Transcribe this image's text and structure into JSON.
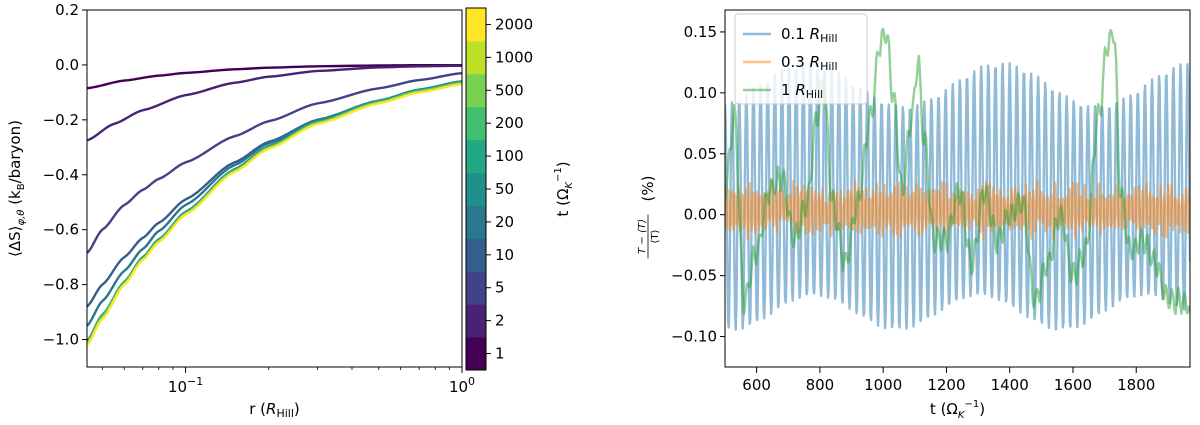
{
  "chart_data": [
    {
      "type": "line",
      "xlabel": "r (R_Hill)",
      "xlabel_parts": {
        "main": "r (",
        "sym": "R",
        "sub": "Hill",
        "close": ")"
      },
      "ylabel": "⟨ΔS⟩φ,θ (kB/baryon)",
      "ylabel_parts": {
        "main": "⟨ΔS⟩",
        "sub": "φ,θ",
        "mid": " (k",
        "sub2": "B",
        "tail": "/baryon)"
      },
      "x_scale": "log",
      "xlim": [
        0.044,
        1.0
      ],
      "ylim": [
        -1.1,
        0.2
      ],
      "x_ticks": [
        {
          "value": 0.1,
          "base": "10",
          "exp": "−1"
        },
        {
          "value": 1.0,
          "base": "10",
          "exp": "0"
        }
      ],
      "y_ticks": [
        "0.2",
        "0.0",
        "−0.2",
        "−0.4",
        "−0.6",
        "−0.8",
        "−1.0"
      ],
      "y_tick_values": [
        0.2,
        0.0,
        -0.2,
        -0.4,
        -0.6,
        -0.8,
        -1.0
      ],
      "colorbar": {
        "label": "t (Ω_K^-1)",
        "label_parts": {
          "main": "t (Ω",
          "sub": "K",
          "sup": "−1",
          "close": ")"
        },
        "ticks": [
          "1",
          "2",
          "5",
          "10",
          "20",
          "50",
          "100",
          "200",
          "500",
          "1000",
          "2000"
        ],
        "colors": [
          "#440154",
          "#482374",
          "#404387",
          "#345f8d",
          "#29788e",
          "#20908d",
          "#22a884",
          "#43bf71",
          "#7ad151",
          "#bcdf27",
          "#fde725"
        ]
      },
      "series": [
        {
          "t": 1,
          "color": "#440154",
          "x": [
            0.044,
            0.06,
            0.08,
            0.1,
            0.15,
            0.2,
            0.3,
            0.5,
            0.7,
            1.0
          ],
          "y": [
            -0.085,
            -0.057,
            -0.039,
            -0.029,
            -0.016,
            -0.01,
            -0.005,
            -0.002,
            -0.001,
            -0.001
          ]
        },
        {
          "t": 2,
          "color": "#482374",
          "x": [
            0.044,
            0.055,
            0.07,
            0.1,
            0.15,
            0.2,
            0.3,
            0.5,
            0.7,
            1.0
          ],
          "y": [
            -0.275,
            -0.215,
            -0.165,
            -0.11,
            -0.065,
            -0.043,
            -0.022,
            -0.009,
            -0.005,
            -0.003
          ]
        },
        {
          "t": 10,
          "color": "#404387",
          "x": [
            0.044,
            0.05,
            0.06,
            0.07,
            0.08,
            0.1,
            0.15,
            0.2,
            0.3,
            0.5,
            0.7,
            1.0
          ],
          "y": [
            -0.685,
            -0.6,
            -0.51,
            -0.455,
            -0.415,
            -0.355,
            -0.26,
            -0.205,
            -0.14,
            -0.085,
            -0.055,
            -0.03
          ]
        },
        {
          "t": 50,
          "color": "#345f8d",
          "x": [
            0.044,
            0.05,
            0.06,
            0.07,
            0.08,
            0.1,
            0.15,
            0.2,
            0.3,
            0.5,
            0.7,
            1.0
          ],
          "y": [
            -0.88,
            -0.8,
            -0.7,
            -0.63,
            -0.575,
            -0.49,
            -0.355,
            -0.28,
            -0.2,
            -0.13,
            -0.09,
            -0.06
          ]
        },
        {
          "t": 200,
          "color": "#2b758e",
          "x": [
            0.044,
            0.05,
            0.06,
            0.07,
            0.08,
            0.1,
            0.15,
            0.2,
            0.3,
            0.5,
            0.7,
            1.0
          ],
          "y": [
            -0.95,
            -0.86,
            -0.75,
            -0.67,
            -0.605,
            -0.51,
            -0.365,
            -0.285,
            -0.2,
            -0.13,
            -0.09,
            -0.06
          ]
        },
        {
          "t": 500,
          "color": "#21918c",
          "x": [
            0.044,
            0.05,
            0.06,
            0.07,
            0.08,
            0.1,
            0.15,
            0.2,
            0.3,
            0.5,
            0.7,
            1.0
          ],
          "y": [
            -1.005,
            -0.91,
            -0.79,
            -0.7,
            -0.635,
            -0.535,
            -0.38,
            -0.295,
            -0.205,
            -0.13,
            -0.09,
            -0.06
          ]
        },
        {
          "t": 1000,
          "color": "#5ec962",
          "x": [
            0.044,
            0.05,
            0.06,
            0.07,
            0.08,
            0.1,
            0.15,
            0.2,
            0.3,
            0.5,
            0.7,
            1.0
          ],
          "y": [
            -1.012,
            -0.915,
            -0.795,
            -0.705,
            -0.64,
            -0.54,
            -0.385,
            -0.3,
            -0.21,
            -0.135,
            -0.095,
            -0.065
          ]
        },
        {
          "t": 2000,
          "color": "#fde725",
          "x": [
            0.044,
            0.05,
            0.06,
            0.07,
            0.08,
            0.1,
            0.15,
            0.2,
            0.3,
            0.5,
            0.7,
            1.0
          ],
          "y": [
            -1.02,
            -0.925,
            -0.8,
            -0.71,
            -0.645,
            -0.545,
            -0.39,
            -0.305,
            -0.215,
            -0.14,
            -0.1,
            -0.07
          ]
        }
      ]
    },
    {
      "type": "line",
      "xlabel": "t (Ω_K^-1)",
      "xlabel_parts": {
        "main": "t (Ω",
        "sub": "K",
        "sup": "−1",
        "close": ")"
      },
      "ylabel": "(T − ⟨T⟩) / ⟨T⟩ (%)",
      "ylabel_parts": {
        "num": "T − ⟨T⟩",
        "den": "⟨T⟩",
        "unit": "(%)"
      },
      "xlim": [
        500,
        1970
      ],
      "ylim": [
        -0.125,
        0.168
      ],
      "x_ticks": [
        "600",
        "800",
        "1000",
        "1200",
        "1400",
        "1600",
        "1800"
      ],
      "x_tick_values": [
        600,
        800,
        1000,
        1200,
        1400,
        1600,
        1800
      ],
      "y_ticks": [
        "0.15",
        "0.10",
        "0.05",
        "0.00",
        "−0.05",
        "−0.10"
      ],
      "y_tick_values": [
        0.15,
        0.1,
        0.05,
        0.0,
        -0.05,
        -0.1
      ],
      "legend_position": "upper-left",
      "series": [
        {
          "name_parts": {
            "coef": "0.1 ",
            "sym": "R",
            "sub": "Hill"
          },
          "color": "#1f77b4",
          "opacity": 0.5,
          "kind": "oscillation",
          "period": 22.5,
          "amp_hi": 0.12,
          "amp_lo": -0.095,
          "offset": 0.005
        },
        {
          "name_parts": {
            "coef": "0.3 ",
            "sym": "R",
            "sub": "Hill"
          },
          "color": "#ff7f0e",
          "opacity": 0.5,
          "kind": "noise",
          "amp": 0.022
        },
        {
          "name_parts": {
            "coef": "1 ",
            "sym": "R",
            "sub": "Hill"
          },
          "color": "#2ca02c",
          "opacity": 0.5,
          "kind": "anchors",
          "x": [
            500,
            530,
            560,
            600,
            640,
            680,
            720,
            760,
            790,
            810,
            840,
            880,
            920,
            960,
            990,
            1010,
            1030,
            1060,
            1090,
            1110,
            1130,
            1160,
            1200,
            1240,
            1280,
            1320,
            1360,
            1400,
            1440,
            1480,
            1520,
            1560,
            1600,
            1640,
            1680,
            1710,
            1730,
            1750,
            1780,
            1820,
            1860,
            1900,
            1940,
            1970
          ],
          "y": [
            0.02,
            0.08,
            -0.07,
            -0.03,
            0.02,
            0.03,
            -0.02,
            0.01,
            0.08,
            0.11,
            0.01,
            -0.04,
            0.01,
            0.08,
            0.14,
            0.15,
            0.1,
            0.02,
            0.08,
            0.125,
            0.06,
            -0.02,
            -0.02,
            0.02,
            -0.04,
            0.02,
            -0.02,
            0.0,
            0.01,
            -0.07,
            -0.04,
            0.0,
            -0.05,
            -0.03,
            0.08,
            0.14,
            0.15,
            0.02,
            -0.03,
            -0.02,
            -0.04,
            -0.07,
            -0.07,
            -0.075
          ]
        }
      ]
    }
  ]
}
